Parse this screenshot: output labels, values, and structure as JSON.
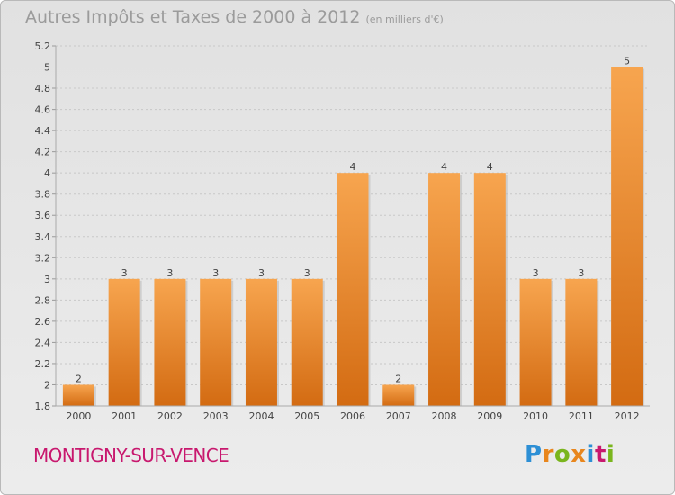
{
  "chart_data": {
    "type": "bar",
    "title": "Autres Impôts et Taxes de 2000 à 2012",
    "subtitle": "(en milliers d'€)",
    "categories": [
      "2000",
      "2001",
      "2002",
      "2003",
      "2004",
      "2005",
      "2006",
      "2007",
      "2008",
      "2009",
      "2010",
      "2011",
      "2012"
    ],
    "values": [
      2,
      3,
      3,
      3,
      3,
      3,
      4,
      2,
      4,
      4,
      3,
      3,
      5
    ],
    "data_labels": [
      "2",
      "3",
      "3",
      "3",
      "3",
      "3",
      "4",
      "2",
      "4",
      "4",
      "3",
      "3",
      "5"
    ],
    "ylim": [
      1.8,
      5.2
    ],
    "yticks": [
      1.8,
      2,
      2.2,
      2.4,
      2.6,
      2.8,
      3,
      3.2,
      3.4,
      3.6,
      3.8,
      4,
      4.2,
      4.4,
      4.6,
      4.8,
      5,
      5.2
    ],
    "ytick_labels": [
      "1.8",
      "2",
      "2.2",
      "2.4",
      "2.6",
      "2.8",
      "3",
      "3.2",
      "3.4",
      "3.6",
      "3.8",
      "4",
      "4.2",
      "4.4",
      "4.6",
      "4.8",
      "5",
      "5.2"
    ],
    "xlabel": "",
    "ylabel": "",
    "grid": true,
    "legend": "none",
    "colors": {
      "bar_light": "#f7a54f",
      "bar_dark": "#d36b12",
      "grid": "#c8c8c8",
      "axis_text": "#444444"
    }
  },
  "footer": {
    "commune": "MONTIGNY-SUR-VENCE",
    "commune_color": "#c8186e",
    "logo_text": "Proxiti",
    "logo_colors": [
      "#2d8fd5",
      "#e8861d",
      "#7ab51d",
      "#e8861d",
      "#2d8fd5",
      "#c8186e",
      "#7ab51d"
    ]
  }
}
